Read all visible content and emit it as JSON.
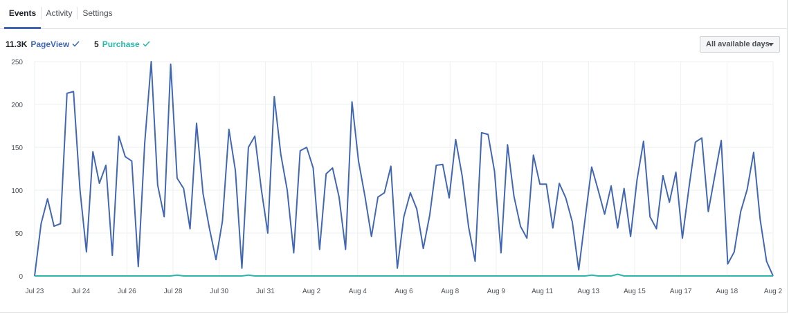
{
  "tabs": [
    {
      "label": "Events",
      "active": true
    },
    {
      "label": "Activity",
      "active": false
    },
    {
      "label": "Settings",
      "active": false
    }
  ],
  "legend": [
    {
      "count": "11.3K",
      "name": "PageView",
      "color": "#4267b2",
      "icon": "check-icon"
    },
    {
      "count": "5",
      "name": "Purchase",
      "color": "#2ab7a9",
      "icon": "check-icon"
    }
  ],
  "date_range": {
    "label": "All available days",
    "icon": "caret-down-icon"
  },
  "chart_data": {
    "type": "line",
    "title": "",
    "xlabel": "",
    "ylabel": "",
    "ylim": [
      0,
      250
    ],
    "yticks": [
      0,
      50,
      100,
      150,
      200,
      250
    ],
    "grid": true,
    "x_start": "Jul 23",
    "x_end": "Aug 2",
    "x_tick_labels": [
      "Jul 23",
      "Jul 24",
      "Jul 26",
      "Jul 28",
      "Jul 30",
      "Jul 31",
      "Aug 2",
      "Aug 4",
      "Aug 6",
      "Aug 8",
      "Aug 9",
      "Aug 11",
      "Aug 13",
      "Aug 15",
      "Aug 17",
      "Aug 18",
      "Aug 2"
    ],
    "series": [
      {
        "name": "PageView",
        "color": "#4267b2",
        "values": [
          0,
          61,
          90,
          58,
          61,
          213,
          215,
          101,
          28,
          145,
          108,
          129,
          24,
          163,
          139,
          134,
          11,
          155,
          250,
          106,
          69,
          247,
          114,
          102,
          55,
          178,
          96,
          55,
          19,
          64,
          171,
          123,
          9,
          150,
          163,
          101,
          50,
          209,
          142,
          100,
          27,
          146,
          150,
          126,
          31,
          119,
          126,
          92,
          31,
          203,
          134,
          93,
          46,
          92,
          97,
          128,
          9,
          69,
          97,
          78,
          32,
          71,
          129,
          130,
          91,
          159,
          117,
          57,
          17,
          167,
          165,
          122,
          27,
          153,
          93,
          58,
          44,
          141,
          107,
          107,
          56,
          108,
          91,
          63,
          7,
          68,
          127,
          100,
          72,
          105,
          56,
          102,
          46,
          112,
          157,
          69,
          55,
          117,
          86,
          121,
          44,
          102,
          156,
          161,
          75,
          117,
          158,
          14,
          28,
          75,
          101,
          144,
          66,
          17,
          0
        ]
      },
      {
        "name": "Purchase",
        "color": "#2ab7a9",
        "values": [
          0,
          0,
          0,
          0,
          0,
          0,
          0,
          0,
          0,
          0,
          0,
          0,
          0,
          0,
          0,
          0,
          0,
          0,
          0,
          0,
          0,
          0,
          1,
          0,
          0,
          0,
          0,
          0,
          0,
          0,
          0,
          0,
          0,
          1,
          0,
          0,
          0,
          0,
          0,
          0,
          0,
          0,
          0,
          0,
          0,
          0,
          0,
          0,
          0,
          0,
          0,
          0,
          0,
          0,
          0,
          0,
          0,
          0,
          0,
          0,
          0,
          0,
          0,
          0,
          0,
          0,
          0,
          0,
          0,
          0,
          0,
          0,
          0,
          0,
          0,
          0,
          0,
          0,
          0,
          0,
          0,
          0,
          0,
          0,
          0,
          0,
          1,
          0,
          0,
          0,
          2,
          0,
          0,
          0,
          0,
          0,
          0,
          0,
          0,
          0,
          0,
          0,
          0,
          0,
          0,
          0,
          0,
          0,
          0,
          0,
          0,
          0,
          0,
          0,
          0
        ]
      }
    ]
  }
}
